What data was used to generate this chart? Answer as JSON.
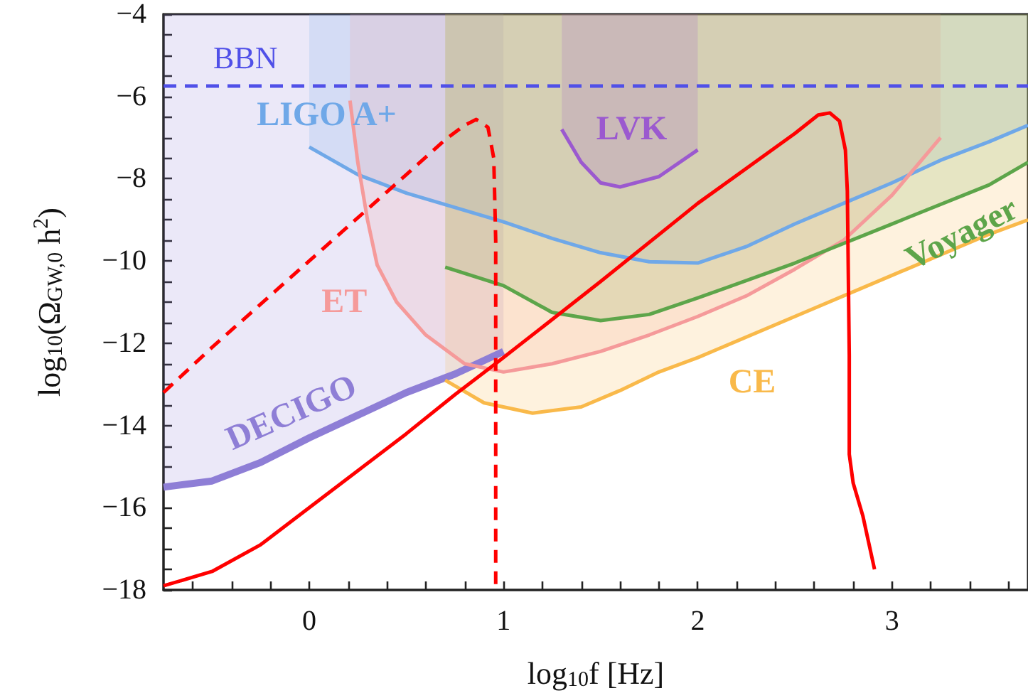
{
  "chart_data": {
    "type": "line",
    "xlabel": "log$_{10}$f [Hz]",
    "ylabel": "log$_{10}$(Ω$_{GW,0}$ h$^{2}$)",
    "xlim": [
      -0.75,
      3.7
    ],
    "ylim": [
      -18,
      -4
    ],
    "xticks": [
      {
        "value": -0.6,
        "label": null
      },
      {
        "value": -0.4,
        "label": null
      },
      {
        "value": -0.2,
        "label": null
      },
      0,
      {
        "value": 0.2,
        "label": null
      },
      {
        "value": 0.4,
        "label": null
      },
      {
        "value": 0.6,
        "label": null
      },
      {
        "value": 0.8,
        "label": null
      },
      1,
      {
        "value": 1.2,
        "label": null
      },
      {
        "value": 1.4,
        "label": null
      },
      {
        "value": 1.6,
        "label": null
      },
      {
        "value": 1.8,
        "label": null
      },
      2,
      {
        "value": 2.2,
        "label": null
      },
      {
        "value": 2.4,
        "label": null
      },
      {
        "value": 2.6,
        "label": null
      },
      {
        "value": 2.8,
        "label": null
      },
      3,
      {
        "value": 3.2,
        "label": null
      },
      {
        "value": 3.4,
        "label": null
      },
      {
        "value": 3.6,
        "label": null
      }
    ],
    "yticks": [
      {
        "value": -18,
        "label": "−18"
      },
      {
        "value": -17.5,
        "label": null
      },
      {
        "value": -17,
        "label": null
      },
      {
        "value": -16.5,
        "label": null
      },
      {
        "value": -16,
        "label": "−16"
      },
      {
        "value": -15.5,
        "label": null
      },
      {
        "value": -15,
        "label": null
      },
      {
        "value": -14.5,
        "label": null
      },
      {
        "value": -14,
        "label": "−14"
      },
      {
        "value": -13.5,
        "label": null
      },
      {
        "value": -13,
        "label": null
      },
      {
        "value": -12.5,
        "label": null
      },
      {
        "value": -12,
        "label": "−12"
      },
      {
        "value": -11.5,
        "label": null
      },
      {
        "value": -11,
        "label": null
      },
      {
        "value": -10.5,
        "label": null
      },
      {
        "value": -10,
        "label": "−10"
      },
      {
        "value": -9.5,
        "label": null
      },
      {
        "value": -9,
        "label": null
      },
      {
        "value": -8.5,
        "label": null
      },
      {
        "value": -8,
        "label": "−8"
      },
      {
        "value": -7.5,
        "label": null
      },
      {
        "value": -7,
        "label": null
      },
      {
        "value": -6.5,
        "label": null
      },
      {
        "value": -6,
        "label": "−6"
      },
      {
        "value": -5.5,
        "label": null
      },
      {
        "value": -5,
        "label": null
      },
      {
        "value": -4.5,
        "label": null
      },
      {
        "value": -4,
        "label": "−4"
      }
    ],
    "grid": false,
    "legend": false,
    "marker": "none",
    "ref_lines": [
      {
        "axis": "y",
        "value": -5.75,
        "label": "BBN",
        "color": "#5050e8",
        "line_style": "dashed"
      }
    ],
    "series": [
      {
        "name": "DECIGO",
        "color": "#8e7ed6",
        "x": [
          -0.75,
          -0.5,
          -0.25,
          0,
          0.25,
          0.5,
          0.75,
          1.0
        ],
        "values": [
          -15.5,
          -15.35,
          -14.9,
          -14.3,
          -13.75,
          -13.2,
          -12.75,
          -12.2
        ],
        "lower": [
          -15.5,
          -15.35,
          -14.9,
          -14.3,
          -13.75,
          -13.2,
          -12.75,
          -12.2
        ],
        "upper": [
          -4,
          -4,
          -4,
          -4,
          -4,
          -4,
          -4,
          -4
        ]
      },
      {
        "name": "LIGO A+",
        "color": "#6fa8e8",
        "x": [
          0,
          0.25,
          0.5,
          0.75,
          1,
          1.25,
          1.5,
          1.75,
          2,
          2.25,
          2.5,
          2.75,
          3,
          3.25,
          3.5,
          3.7
        ],
        "values": [
          -7.23,
          -7.9,
          -8.35,
          -8.7,
          -9.05,
          -9.45,
          -9.8,
          -10.02,
          -10.05,
          -9.65,
          -9.1,
          -8.6,
          -8.1,
          -7.55,
          -7.1,
          -6.7
        ],
        "lower": [
          -7.23,
          -7.9,
          -8.35,
          -8.7,
          -9.05,
          -9.45,
          -9.8,
          -10.02,
          -10.05,
          -9.65,
          -9.1,
          -8.6,
          -8.1,
          -7.55,
          -7.1,
          -6.7
        ],
        "upper": [
          -4,
          -4,
          -4,
          -4,
          -4,
          -4,
          -4,
          -4,
          -4,
          -4,
          -4,
          -4,
          -4,
          -4,
          -4,
          -4
        ]
      },
      {
        "name": "ET",
        "color": "#f59a9a",
        "x": [
          0.21,
          0.25,
          0.3,
          0.35,
          0.45,
          0.6,
          0.8,
          1.0,
          1.25,
          1.5,
          1.75,
          2.0,
          2.25,
          2.5,
          2.75,
          3.0,
          3.25
        ],
        "values": [
          -6.1,
          -7.6,
          -9.0,
          -10.1,
          -11.0,
          -11.8,
          -12.5,
          -12.7,
          -12.5,
          -12.2,
          -11.8,
          -11.35,
          -10.85,
          -10.2,
          -9.5,
          -8.4,
          -7.0
        ],
        "lower": [
          -6.1,
          -7.6,
          -9.0,
          -10.1,
          -11.0,
          -11.8,
          -12.5,
          -12.7,
          -12.5,
          -12.2,
          -11.8,
          -11.35,
          -10.85,
          -10.2,
          -9.5,
          -8.4,
          -7.0
        ],
        "upper": [
          -4,
          -4,
          -4,
          -4,
          -4,
          -4,
          -4,
          -4,
          -4,
          -4,
          -4,
          -4,
          -4,
          -4,
          -4,
          -4,
          -4
        ]
      },
      {
        "name": "Voyager",
        "color": "#5da54a",
        "x": [
          0.7,
          1,
          1.25,
          1.5,
          1.75,
          2,
          2.5,
          3,
          3.5,
          3.7
        ],
        "values": [
          -10.15,
          -10.6,
          -11.25,
          -11.45,
          -11.3,
          -10.9,
          -10.05,
          -9.1,
          -8.15,
          -7.6
        ],
        "lower": [
          -10.15,
          -10.6,
          -11.25,
          -11.45,
          -11.3,
          -10.9,
          -10.05,
          -9.1,
          -8.15,
          -7.6
        ],
        "upper": [
          -4,
          -4,
          -4,
          -4,
          -4,
          -4,
          -4,
          -4,
          -4,
          -4
        ]
      },
      {
        "name": "CE",
        "color": "#f9b94a",
        "x": [
          0.7,
          0.9,
          1.15,
          1.4,
          1.6,
          1.8,
          2,
          2.5,
          3,
          3.5,
          3.7
        ],
        "values": [
          -12.9,
          -13.45,
          -13.7,
          -13.55,
          -13.15,
          -12.7,
          -12.35,
          -11.35,
          -10.35,
          -9.35,
          -9.0
        ],
        "lower": [
          -12.9,
          -13.45,
          -13.7,
          -13.55,
          -13.15,
          -12.7,
          -12.35,
          -11.35,
          -10.35,
          -9.35,
          -9.0
        ],
        "upper": [
          -4,
          -4,
          -4,
          -4,
          -4,
          -4,
          -4,
          -4,
          -4,
          -4,
          -4
        ]
      },
      {
        "name": "LVK",
        "color": "#9b59cf",
        "x": [
          1.3,
          1.4,
          1.5,
          1.6,
          1.8,
          2.0
        ],
        "values": [
          -6.8,
          -7.6,
          -8.1,
          -8.2,
          -7.95,
          -7.3
        ],
        "lower": [
          -6.8,
          -7.6,
          -8.1,
          -8.2,
          -7.95,
          -7.3
        ],
        "upper": [
          -4,
          -4,
          -4,
          -4,
          -4,
          -4
        ]
      },
      {
        "color": "#ff0000",
        "line_style": "solid",
        "x": [
          -0.75,
          -0.5,
          -0.25,
          0,
          0.25,
          0.5,
          0.75,
          1,
          1.5,
          2,
          2.5,
          2.62,
          2.68,
          2.73,
          2.76,
          2.77,
          2.78,
          2.78,
          2.8,
          2.85,
          2.91
        ],
        "values": [
          -17.9,
          -17.55,
          -16.9,
          -16.0,
          -15.1,
          -14.2,
          -13.25,
          -12.35,
          -10.5,
          -8.6,
          -6.9,
          -6.45,
          -6.4,
          -6.6,
          -7.3,
          -8.3,
          -12.3,
          -14.7,
          -15.4,
          -16.2,
          -17.5
        ]
      },
      {
        "color": "#ff0000",
        "line_style": "dashed",
        "x": [
          -0.75,
          -0.5,
          -0.25,
          0,
          0.25,
          0.5,
          0.7,
          0.8,
          0.86,
          0.92,
          0.95,
          0.96,
          0.96
        ],
        "values": [
          -13.2,
          -12.1,
          -11.05,
          -10.0,
          -8.95,
          -7.9,
          -7.05,
          -6.7,
          -6.56,
          -6.75,
          -7.5,
          -9.5,
          -18
        ]
      }
    ]
  }
}
